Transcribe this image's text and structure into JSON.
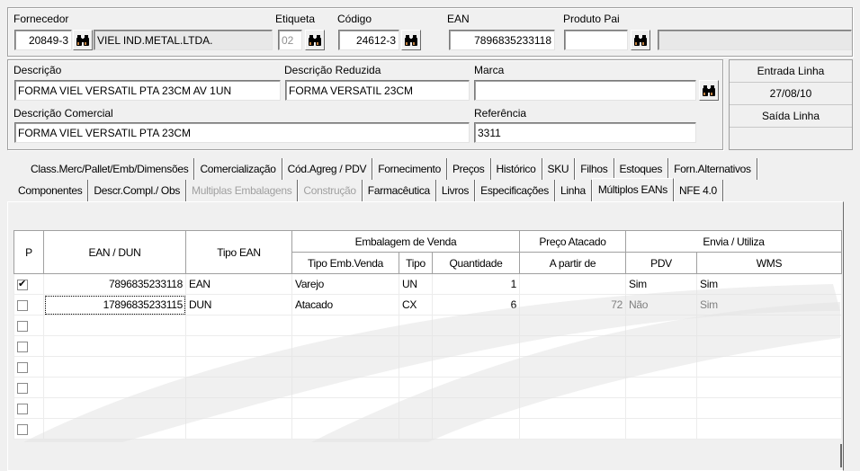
{
  "header": {
    "fornecedor": {
      "label": "Fornecedor",
      "code": "20849-3",
      "name": "VIEL IND.METAL.LTDA."
    },
    "etiqueta": {
      "label": "Etiqueta",
      "value": "02"
    },
    "codigo": {
      "label": "Código",
      "value": "24612-3"
    },
    "ean": {
      "label": "EAN",
      "value": "7896835233118"
    },
    "produto_pai": {
      "label": "Produto Pai",
      "value": "",
      "name": ""
    }
  },
  "descricao": {
    "descricao": {
      "label": "Descrição",
      "value": "FORMA VIEL VERSATIL PTA 23CM    AV   1UN"
    },
    "descricao_reduzida": {
      "label": "Descrição Reduzida",
      "value": "FORMA VERSATIL 23CM"
    },
    "marca": {
      "label": "Marca",
      "value": ""
    },
    "descricao_comercial": {
      "label": "Descrição Comercial",
      "value": "FORMA VIEL VERSATIL PTA 23CM"
    },
    "referencia": {
      "label": "Referência",
      "value": "3311"
    }
  },
  "linha": {
    "entrada_label": "Entrada Linha",
    "entrada_value": "27/08/10",
    "saida_label": "Saída Linha",
    "saida_value": ""
  },
  "tabs_row1": [
    "Class.Merc/Pallet/Emb/Dimensões",
    "Comercialização",
    "Cód.Agreg / PDV",
    "Fornecimento",
    "Preços",
    "Histórico",
    "SKU",
    "Filhos",
    "Estoques",
    "Forn.Alternativos"
  ],
  "tabs_row2": [
    {
      "label": "Componentes",
      "disabled": false
    },
    {
      "label": "Descr.Compl./ Obs",
      "disabled": false
    },
    {
      "label": "Multiplas Embalagens",
      "disabled": true
    },
    {
      "label": "Construção",
      "disabled": true
    },
    {
      "label": "Farmacêutica",
      "disabled": false
    },
    {
      "label": "Livros",
      "disabled": false
    },
    {
      "label": "Especificações",
      "disabled": false
    },
    {
      "label": "Linha",
      "disabled": false
    },
    {
      "label": "Múltiplos EANs",
      "disabled": false,
      "active": true
    },
    {
      "label": "NFE 4.0",
      "disabled": false
    }
  ],
  "grid": {
    "headers": {
      "p": "P",
      "ean_dun": "EAN / DUN",
      "tipo_ean": "Tipo EAN",
      "embalagem": "Embalagem de Venda",
      "preco_atacado": "Preço Atacado",
      "envia": "Envia / Utiliza",
      "tipo_emb_venda": "Tipo Emb.Venda",
      "tipo": "Tipo",
      "quantidade": "Quantidade",
      "a_partir_de": "A partir de",
      "pdv": "PDV",
      "wms": "WMS"
    },
    "rows": [
      {
        "p": true,
        "ean": "7896835233118",
        "tipo_ean": "EAN",
        "tipo_emb": "Varejo",
        "tipo": "UN",
        "quantidade": "1",
        "a_partir": "",
        "pdv": "Sim",
        "wms": "Sim"
      },
      {
        "p": false,
        "ean": "17896835233115",
        "tipo_ean": "DUN",
        "tipo_emb": "Atacado",
        "tipo": "CX",
        "quantidade": "6",
        "a_partir": "72",
        "pdv": "Não",
        "wms": "Sim"
      },
      {
        "p": false
      },
      {
        "p": false
      },
      {
        "p": false
      },
      {
        "p": false
      },
      {
        "p": false
      },
      {
        "p": false
      }
    ]
  },
  "icons": {
    "search": "binoculars-icon"
  }
}
